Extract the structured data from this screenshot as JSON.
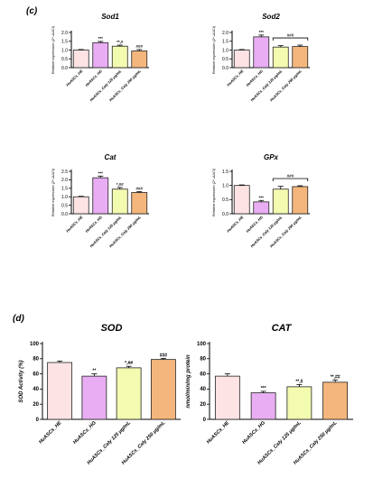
{
  "panels": [
    {
      "label": "(c)"
    },
    {
      "label": "(d)"
    }
  ],
  "colors": [
    "#fde3e4",
    "#e8adf3",
    "#f3fbb0",
    "#f4b67c"
  ],
  "chart_data": [
    {
      "id": "sod1",
      "type": "bar",
      "group": "c",
      "title": "Sod1",
      "ylabel": "Relative expression (2^-ΔΔCt)",
      "ylim": [
        0,
        2.0
      ],
      "ticks": [
        0.0,
        0.5,
        1.0,
        1.5,
        2.0
      ],
      "tick_decimals": 1,
      "categories": [
        "HuASCs_HE",
        "HuASCs_HG",
        "HuASCs_Caly 125 μg/mL",
        "HuASCs_Caly 250 μg/mL"
      ],
      "values": [
        1.0,
        1.42,
        1.22,
        0.95
      ],
      "errors": [
        0.03,
        0.07,
        0.06,
        0.08
      ],
      "annotations": [
        "",
        "***",
        "**,#",
        "###"
      ]
    },
    {
      "id": "sod2",
      "type": "bar",
      "group": "c",
      "title": "Sod2",
      "ylabel": "Relative expression (2^-ΔΔCt)",
      "ylim": [
        0,
        2.0
      ],
      "ticks": [
        0.0,
        0.5,
        1.0,
        1.5,
        2.0
      ],
      "tick_decimals": 1,
      "categories": [
        "HuASCs_HE",
        "HuASCs_HG",
        "HuASCs_Caly 125 μg/mL",
        "HuASCs_Caly 250 μg/mL"
      ],
      "values": [
        1.0,
        1.75,
        1.17,
        1.2
      ],
      "errors": [
        0.03,
        0.1,
        0.08,
        0.08
      ],
      "annotations": [
        "",
        "***",
        "",
        ""
      ],
      "bracket": {
        "from": 2,
        "to": 3,
        "label": "###"
      }
    },
    {
      "id": "cat",
      "type": "bar",
      "group": "c",
      "title": "Cat",
      "ylabel": "Relative expression (2^-ΔΔCt)",
      "ylim": [
        0,
        2.5
      ],
      "ticks": [
        0.0,
        0.5,
        1.0,
        1.5,
        2.0,
        2.5
      ],
      "tick_decimals": 1,
      "categories": [
        "HuASCs_HE",
        "HuASCs_HG",
        "HuASCs_Caly 125 μg/mL",
        "HuASCs_Caly 250 μg/mL"
      ],
      "values": [
        1.0,
        2.12,
        1.45,
        1.25
      ],
      "errors": [
        0.03,
        0.1,
        0.1,
        0.05
      ],
      "annotations": [
        "",
        "***",
        "*,##",
        "###"
      ]
    },
    {
      "id": "gpx",
      "type": "bar",
      "group": "c",
      "title": "GPx",
      "ylabel": "Relative expression (2^-ΔΔCt)",
      "ylim": [
        0,
        1.5
      ],
      "ticks": [
        0.0,
        0.5,
        1.0,
        1.5
      ],
      "tick_decimals": 1,
      "categories": [
        "HuASCs_HE",
        "HuASCs_HG",
        "HuASCs_Caly 125 μg/mL",
        "HuASCs_Caly 250 μg/mL"
      ],
      "values": [
        1.0,
        0.42,
        0.87,
        0.96
      ],
      "errors": [
        0.02,
        0.05,
        0.1,
        0.03
      ],
      "annotations": [
        "",
        "***",
        "",
        ""
      ],
      "bracket": {
        "from": 2,
        "to": 3,
        "label": "###"
      }
    },
    {
      "id": "sod",
      "type": "bar",
      "group": "d",
      "title": "SOD",
      "ylabel": "SOD Activity (%)",
      "ylim": [
        0,
        100
      ],
      "ticks": [
        0,
        20,
        40,
        60,
        80,
        100
      ],
      "tick_decimals": 0,
      "categories": [
        "HuASCs_HE",
        "HuASCs_HG",
        "HuASCs_Caly 125 μg/mL",
        "HuASCs_Caly 250 μg/mL"
      ],
      "values": [
        75,
        57,
        68,
        79
      ],
      "errors": [
        2,
        3,
        2,
        1.5
      ],
      "annotations": [
        "",
        "**",
        "*,##",
        "###"
      ]
    },
    {
      "id": "catd",
      "type": "bar",
      "group": "d",
      "title": "CAT",
      "ylabel": "nmol/min/mg protein",
      "ylim": [
        0,
        100
      ],
      "ticks": [
        0,
        20,
        40,
        60,
        80,
        100
      ],
      "tick_decimals": 0,
      "categories": [
        "HuASCs_HE",
        "HuASCs_HG",
        "HuASCs_Caly 125 μg/mL",
        "HuASCs_Caly 250 μg/mL"
      ],
      "values": [
        57,
        35,
        43,
        49
      ],
      "errors": [
        3,
        2,
        3,
        3
      ],
      "annotations": [
        "",
        "***",
        "**,#",
        "**,##"
      ]
    }
  ]
}
